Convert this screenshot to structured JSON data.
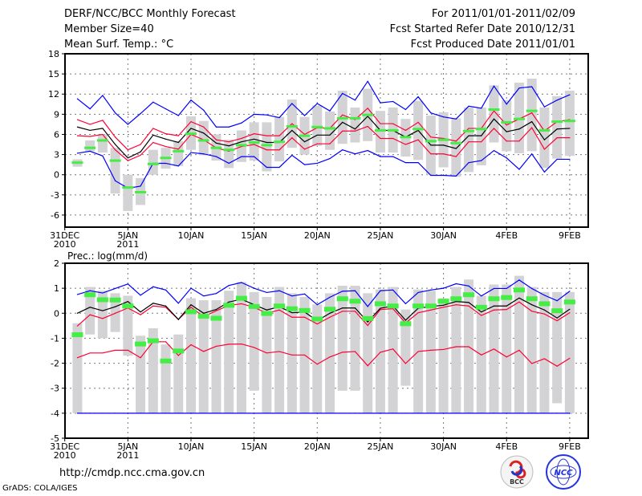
{
  "header": {
    "title": "DERF/NCC/BCC Monthly Forecast",
    "member_size": "Member Size=40",
    "variable": "Mean Surf. Temp.: °C",
    "for_range": "For 2011/01/01-2011/02/09",
    "start_date": "Fcst Started Refer Date 2010/12/31",
    "produced_date": "Fcst Produced Date 2011/01/01"
  },
  "footer": {
    "url": "http://cmdp.ncc.cma.gov.cn",
    "credit": "GrADS: COLA/IGES",
    "logo_bcc": "BCC",
    "logo_ncc": "NCC"
  },
  "colors": {
    "max_min": "#0000ff",
    "spread": "#ff0033",
    "mean": "#000000",
    "obs": "#44ee44",
    "box": "#d3d3d6"
  },
  "chart_data": [
    {
      "type": "line",
      "title": "Mean Surf. Temp.: °C",
      "x": "days since 31DEC2010 (1..40)",
      "xticks": [
        {
          "day": 0,
          "label": "31DEC",
          "sub": "2010"
        },
        {
          "day": 5,
          "label": "5JAN",
          "sub": "2011"
        },
        {
          "day": 10,
          "label": "10JAN",
          "sub": ""
        },
        {
          "day": 15,
          "label": "15JAN",
          "sub": ""
        },
        {
          "day": 20,
          "label": "20JAN",
          "sub": ""
        },
        {
          "day": 25,
          "label": "25JAN",
          "sub": ""
        },
        {
          "day": 30,
          "label": "30JAN",
          "sub": ""
        },
        {
          "day": 35,
          "label": "4FEB",
          "sub": ""
        },
        {
          "day": 40,
          "label": "9FEB",
          "sub": ""
        }
      ],
      "yticks": [
        "18",
        "15",
        "12",
        "9",
        "6",
        "3",
        "0",
        "-3",
        "-6"
      ],
      "ytick_values": [
        18,
        15,
        12,
        9,
        6,
        3,
        0,
        -3,
        -6
      ],
      "ylim": [
        -7.8,
        18
      ],
      "grid": true,
      "series": [
        {
          "name": "max",
          "color": "#0000ff",
          "values": [
            11.3,
            9.8,
            11.8,
            9.2,
            7.5,
            9.1,
            10.8,
            9.8,
            8.8,
            11.1,
            9.6,
            7.1,
            7.1,
            7.7,
            9.0,
            8.9,
            8.5,
            10.6,
            8.8,
            10.6,
            9.5,
            12.1,
            11.1,
            13.9,
            10.7,
            10.9,
            9.7,
            11.6,
            9.2,
            8.6,
            8.3,
            10.2,
            9.9,
            13.2,
            10.5,
            12.9,
            13.1,
            10.1,
            11.1,
            11.9
          ]
        },
        {
          "name": "upper",
          "color": "#ff0033",
          "values": [
            8.2,
            7.5,
            8.1,
            5.6,
            3.7,
            4.5,
            6.9,
            6.1,
            5.8,
            7.9,
            7.1,
            5.2,
            4.9,
            5.4,
            6.1,
            5.8,
            5.8,
            7.6,
            6.0,
            7.0,
            6.9,
            8.9,
            8.2,
            9.9,
            7.6,
            7.6,
            6.6,
            7.8,
            5.6,
            5.4,
            5.0,
            6.9,
            6.9,
            9.5,
            7.4,
            8.3,
            9.2,
            6.5,
            7.9,
            8.2
          ]
        },
        {
          "name": "mean",
          "color": "#000000",
          "values": [
            7.1,
            6.6,
            6.9,
            4.5,
            2.5,
            3.4,
            5.9,
            5.3,
            4.8,
            6.9,
            6.2,
            4.7,
            4.3,
            4.9,
            5.3,
            4.8,
            4.8,
            6.6,
            4.9,
            5.9,
            5.9,
            7.8,
            6.8,
            8.7,
            6.6,
            6.6,
            5.6,
            6.6,
            4.4,
            4.4,
            3.9,
            5.8,
            5.8,
            8.3,
            6.4,
            6.8,
            7.9,
            5.2,
            6.8,
            6.9
          ]
        },
        {
          "name": "lower",
          "color": "#ff0033",
          "values": [
            5.8,
            5.7,
            6.0,
            3.7,
            2.1,
            2.9,
            4.8,
            4.2,
            3.8,
            6.0,
            5.2,
            4.0,
            3.5,
            4.2,
            4.5,
            3.7,
            3.7,
            5.5,
            3.8,
            4.6,
            4.6,
            6.5,
            6.5,
            7.2,
            5.4,
            5.4,
            4.5,
            5.2,
            3.1,
            3.1,
            2.7,
            4.9,
            4.9,
            6.9,
            5.0,
            5.0,
            7.0,
            3.8,
            5.5,
            5.5
          ]
        },
        {
          "name": "min",
          "color": "#0000ff",
          "values": [
            3.2,
            3.5,
            2.8,
            -0.9,
            -2.0,
            -1.7,
            1.7,
            1.7,
            1.3,
            3.3,
            3.1,
            2.7,
            1.7,
            2.7,
            2.7,
            1.1,
            1.1,
            2.9,
            1.5,
            1.7,
            2.4,
            3.7,
            3.1,
            3.6,
            2.7,
            2.7,
            1.8,
            1.8,
            -0.1,
            -0.1,
            -0.2,
            1.8,
            2.1,
            3.6,
            2.5,
            0.8,
            3.1,
            0.4,
            2.3,
            2.3
          ]
        }
      ],
      "observed": [
        1.8,
        4.0,
        5.1,
        2.1,
        -1.9,
        -2.6,
        1.6,
        2.5,
        3.5,
        6.1,
        5.1,
        4.0,
        3.7,
        4.4,
        4.8,
        4.4,
        4.9,
        7.2,
        5.8,
        7.1,
        6.9,
        8.4,
        8.4,
        8.9,
        6.6,
        6.6,
        5.6,
        6.8,
        5.0,
        5.2,
        4.7,
        6.5,
        6.8,
        9.7,
        7.8,
        8.3,
        9.5,
        6.6,
        7.9,
        8.0
      ],
      "box_range": [
        [
          1.2,
          2.3
        ],
        [
          3.5,
          5.1
        ],
        [
          3.3,
          6.0
        ],
        [
          -2.8,
          4.0
        ],
        [
          -5.4,
          0
        ],
        [
          -4.5,
          -0.5
        ],
        [
          0,
          3.7
        ],
        [
          0.9,
          4.0
        ],
        [
          1.3,
          5.0
        ],
        [
          3.7,
          8.7
        ],
        [
          2.9,
          8.0
        ],
        [
          2.1,
          6.0
        ],
        [
          1.0,
          5.2
        ],
        [
          1.9,
          6.6
        ],
        [
          2.1,
          7.8
        ],
        [
          0.5,
          7.8
        ],
        [
          2.0,
          8.6
        ],
        [
          4.0,
          11.2
        ],
        [
          3.0,
          8.6
        ],
        [
          4.3,
          10.3
        ],
        [
          3.7,
          9.4
        ],
        [
          4.6,
          12.5
        ],
        [
          4.8,
          10.0
        ],
        [
          5.0,
          12.8
        ],
        [
          3.3,
          9.5
        ],
        [
          3.3,
          10.0
        ],
        [
          2.7,
          8.3
        ],
        [
          2.2,
          11.0
        ],
        [
          0,
          8.8
        ],
        [
          1.1,
          9.3
        ],
        [
          -0.3,
          8.4
        ],
        [
          0.4,
          10.0
        ],
        [
          1.4,
          10.0
        ],
        [
          4.8,
          13.3
        ],
        [
          3.5,
          11.1
        ],
        [
          3.2,
          13.7
        ],
        [
          3.5,
          14.3
        ],
        [
          1.0,
          10.0
        ],
        [
          2.4,
          11.7
        ],
        [
          2.8,
          12.5
        ]
      ]
    },
    {
      "type": "line",
      "title": "Prec.: log(mm/d)",
      "x": "days since 31DEC2010 (1..40)",
      "yticks": [
        "2",
        "1",
        "0",
        "-1",
        "-2",
        "-3",
        "-4",
        "-5"
      ],
      "ytick_values": [
        2,
        1,
        0,
        -1,
        -2,
        -3,
        -4,
        -5
      ],
      "ylim": [
        -5,
        2
      ],
      "grid": true,
      "series": [
        {
          "name": "max",
          "color": "#0000ff",
          "values": [
            0.75,
            0.9,
            0.81,
            0.99,
            1.17,
            0.72,
            1.06,
            0.93,
            0.4,
            1.0,
            0.69,
            0.79,
            1.11,
            1.23,
            1.0,
            0.83,
            0.9,
            0.69,
            0.77,
            0.34,
            0.64,
            0.88,
            0.9,
            0.27,
            0.9,
            0.93,
            0.38,
            0.83,
            0.93,
            1.0,
            1.18,
            1.09,
            0.69,
            0.99,
            0.99,
            1.33,
            0.99,
            0.72,
            0.5,
            0.88
          ]
        },
        {
          "name": "upper",
          "color": "#ff0033",
          "values": [
            -0.51,
            -0.06,
            -0.21,
            0,
            0.21,
            -0.06,
            0.29,
            0.24,
            -0.25,
            0.24,
            -0.14,
            0.1,
            0.31,
            0.38,
            0.24,
            0,
            0.13,
            -0.16,
            -0.16,
            -0.43,
            -0.16,
            0.08,
            0.08,
            -0.49,
            0.15,
            0.18,
            -0.39,
            0.02,
            0.13,
            0.24,
            0.34,
            0.29,
            -0.09,
            0.13,
            0.15,
            0.45,
            0.08,
            -0.03,
            -0.3,
            0.02
          ]
        },
        {
          "name": "mean",
          "color": "#000000",
          "values": [
            0,
            0.24,
            0.1,
            0.26,
            0.47,
            0.05,
            0.4,
            0.29,
            -0.25,
            0.34,
            0,
            0.15,
            0.45,
            0.56,
            0.34,
            0.13,
            0.26,
            0.02,
            0.05,
            -0.3,
            0,
            0.21,
            0.21,
            -0.35,
            0.2,
            0.29,
            -0.28,
            0.2,
            0.27,
            0.32,
            0.47,
            0.43,
            0.05,
            0.29,
            0.29,
            0.61,
            0.34,
            0.13,
            -0.19,
            0.16
          ]
        },
        {
          "name": "lower",
          "color": "#ff0033",
          "values": [
            -1.78,
            -1.59,
            -1.59,
            -1.48,
            -1.48,
            -1.78,
            -1.14,
            -1.14,
            -1.69,
            -1.26,
            -1.53,
            -1.32,
            -1.24,
            -1.23,
            -1.37,
            -1.59,
            -1.53,
            -1.67,
            -1.67,
            -2.04,
            -1.75,
            -1.56,
            -1.53,
            -2.1,
            -1.56,
            -1.43,
            -2.01,
            -1.53,
            -1.48,
            -1.45,
            -1.34,
            -1.34,
            -1.67,
            -1.43,
            -1.75,
            -1.48,
            -2.01,
            -1.82,
            -2.12,
            -1.8
          ]
        },
        {
          "name": "min",
          "color": "#0000ff",
          "values": [
            -4,
            -4,
            -4,
            -4,
            -4,
            -4,
            -4,
            -4,
            -4,
            -4,
            -4,
            -4,
            -4,
            -4,
            -4,
            -4,
            -4,
            -4,
            -4,
            -4,
            -4,
            -4,
            -4,
            -4,
            -4,
            -4,
            -4,
            -4,
            -4,
            -4,
            -4,
            -4,
            -4,
            -4,
            -4,
            -4,
            -4,
            -4,
            -4,
            -4
          ]
        }
      ],
      "observed": [
        -0.86,
        0.74,
        0.54,
        0.53,
        0.29,
        -1.23,
        -1.1,
        -1.91,
        -1.51,
        0.06,
        -0.12,
        -0.2,
        0.32,
        0.6,
        0.27,
        -0.01,
        0.29,
        0.18,
        0.11,
        -0.23,
        0.16,
        0.58,
        0.48,
        -0.21,
        0.38,
        0.29,
        -0.42,
        0.29,
        0.29,
        0.48,
        0.58,
        0.74,
        0.24,
        0.58,
        0.63,
        0.93,
        0.58,
        0.38,
        0.1,
        0.45
      ],
      "box_range": [
        [
          -4,
          -0.4
        ],
        [
          -0.85,
          1.05
        ],
        [
          -1,
          0.9
        ],
        [
          -0.75,
          0.8
        ],
        [
          -1.7,
          0.7
        ],
        [
          -4,
          -0.9
        ],
        [
          -4,
          -0.6
        ],
        [
          -4,
          -1.25
        ],
        [
          -4,
          -0.85
        ],
        [
          -4,
          0.6
        ],
        [
          -4,
          0.52
        ],
        [
          -4,
          0.52
        ],
        [
          -4,
          0.9
        ],
        [
          -4,
          1.25
        ],
        [
          -3.1,
          0.85
        ],
        [
          -4,
          0.65
        ],
        [
          -4,
          1.05
        ],
        [
          -4,
          0.8
        ],
        [
          -4,
          0.65
        ],
        [
          -4,
          0.35
        ],
        [
          -4,
          0.8
        ],
        [
          -3.1,
          1.1
        ],
        [
          -3.1,
          1.1
        ],
        [
          -4,
          0.8
        ],
        [
          -4,
          0.95
        ],
        [
          -4,
          1.05
        ],
        [
          -2.9,
          0.15
        ],
        [
          -4,
          0.95
        ],
        [
          -4,
          0.9
        ],
        [
          -4,
          0.6
        ],
        [
          -4,
          1.05
        ],
        [
          -4,
          1.35
        ],
        [
          -4,
          0.7
        ],
        [
          -4,
          1.15
        ],
        [
          -4,
          1.15
        ],
        [
          -4,
          1.5
        ],
        [
          -4,
          1.05
        ],
        [
          -4,
          0.85
        ],
        [
          -3.6,
          0.85
        ],
        [
          -4,
          0.85
        ]
      ]
    }
  ]
}
